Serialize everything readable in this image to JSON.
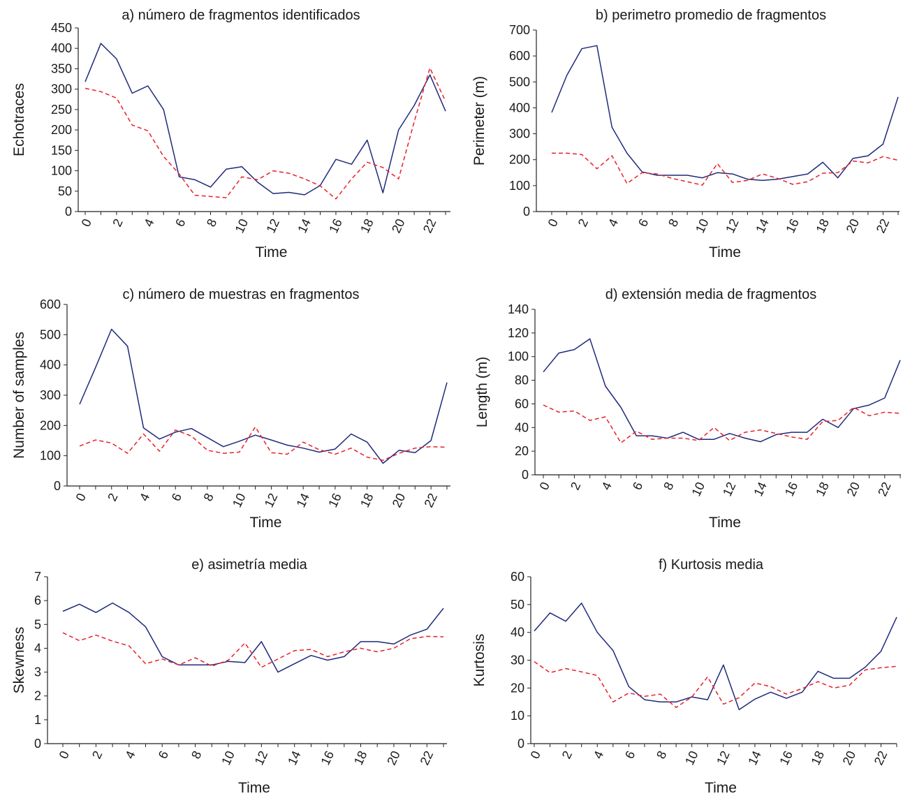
{
  "colors": {
    "solid": "#1f2a7a",
    "dashed": "#e8202a",
    "axis": "#222222"
  },
  "chart_data": [
    {
      "type": "line",
      "title": "a) número de fragmentos identificados",
      "xlabel": "Time",
      "ylabel": "Echotraces",
      "xlim": [
        0,
        23
      ],
      "ylim": [
        0,
        450
      ],
      "yticks": [
        0,
        50,
        100,
        150,
        200,
        250,
        300,
        350,
        400,
        450
      ],
      "xticks": [
        0,
        2,
        4,
        6,
        8,
        10,
        12,
        14,
        16,
        18,
        20,
        22
      ],
      "x": [
        0,
        1,
        2,
        3,
        4,
        5,
        6,
        7,
        8,
        9,
        10,
        11,
        12,
        13,
        14,
        15,
        16,
        17,
        18,
        19,
        20,
        21,
        22,
        23
      ],
      "series": [
        {
          "style": "solid",
          "values": [
            318,
            412,
            374,
            290,
            308,
            250,
            85,
            78,
            60,
            104,
            110,
            72,
            44,
            47,
            41,
            64,
            128,
            116,
            175,
            46,
            200,
            260,
            335,
            246
          ]
        },
        {
          "style": "dashed",
          "values": [
            302,
            294,
            278,
            212,
            198,
            135,
            92,
            40,
            37,
            34,
            85,
            78,
            100,
            94,
            80,
            63,
            31,
            80,
            121,
            108,
            80,
            220,
            352,
            270
          ]
        }
      ]
    },
    {
      "type": "line",
      "title": "b) perimetro promedio de fragmentos",
      "xlabel": "Time",
      "ylabel": "Perimeter (m)",
      "xlim": [
        0,
        23
      ],
      "ylim": [
        0,
        700
      ],
      "yticks": [
        0,
        100,
        200,
        300,
        400,
        500,
        600,
        700
      ],
      "xticks": [
        0,
        2,
        4,
        6,
        8,
        10,
        12,
        14,
        16,
        18,
        20,
        22
      ],
      "x": [
        0,
        1,
        2,
        3,
        4,
        5,
        6,
        7,
        8,
        9,
        10,
        11,
        12,
        13,
        14,
        15,
        16,
        17,
        18,
        19,
        20,
        21,
        22,
        23
      ],
      "series": [
        {
          "style": "solid",
          "values": [
            382,
            525,
            628,
            640,
            325,
            225,
            153,
            140,
            140,
            140,
            130,
            150,
            145,
            125,
            120,
            125,
            135,
            145,
            190,
            130,
            205,
            215,
            260,
            442
          ]
        },
        {
          "style": "dashed",
          "values": [
            225,
            225,
            220,
            165,
            215,
            108,
            150,
            145,
            128,
            115,
            102,
            185,
            112,
            120,
            145,
            128,
            105,
            115,
            148,
            150,
            195,
            188,
            212,
            198
          ]
        }
      ]
    },
    {
      "type": "line",
      "title": "c) número de muestras en fragmentos",
      "xlabel": "Time",
      "ylabel": "Number of samples",
      "xlim": [
        0,
        23
      ],
      "ylim": [
        0,
        600
      ],
      "yticks": [
        0,
        100,
        200,
        300,
        400,
        500,
        600
      ],
      "xticks": [
        0,
        2,
        4,
        6,
        8,
        10,
        12,
        14,
        16,
        18,
        20,
        22
      ],
      "x": [
        0,
        1,
        2,
        3,
        4,
        5,
        6,
        7,
        8,
        9,
        10,
        11,
        12,
        13,
        14,
        15,
        16,
        17,
        18,
        19,
        20,
        21,
        22,
        23
      ],
      "series": [
        {
          "style": "solid",
          "values": [
            270,
            392,
            518,
            462,
            192,
            155,
            178,
            190,
            160,
            130,
            148,
            168,
            152,
            135,
            125,
            112,
            122,
            172,
            145,
            75,
            118,
            110,
            150,
            342
          ]
        },
        {
          "style": "dashed",
          "values": [
            132,
            152,
            142,
            108,
            172,
            115,
            185,
            165,
            118,
            108,
            112,
            195,
            110,
            105,
            145,
            120,
            105,
            125,
            95,
            85,
            108,
            125,
            130,
            128
          ]
        }
      ]
    },
    {
      "type": "line",
      "title": "d) extensión media de fragmentos",
      "xlabel": "Time",
      "ylabel": "Length (m)",
      "xlim": [
        0,
        23
      ],
      "ylim": [
        0,
        140
      ],
      "yticks": [
        0,
        20,
        40,
        60,
        80,
        100,
        120,
        140
      ],
      "xticks": [
        0,
        2,
        4,
        6,
        8,
        10,
        12,
        14,
        16,
        18,
        20,
        22
      ],
      "x": [
        0,
        1,
        2,
        3,
        4,
        5,
        6,
        7,
        8,
        9,
        10,
        11,
        12,
        13,
        14,
        15,
        16,
        17,
        18,
        19,
        20,
        21,
        22,
        23
      ],
      "series": [
        {
          "style": "solid",
          "values": [
            87,
            103,
            106,
            115,
            75,
            57,
            33,
            33,
            31,
            36,
            30,
            30,
            35,
            31,
            28,
            34,
            36,
            36,
            47,
            40,
            56,
            59,
            65,
            97
          ]
        },
        {
          "style": "dashed",
          "values": [
            59,
            53,
            54,
            46,
            49,
            27,
            37,
            30,
            31,
            31,
            29,
            40,
            29,
            36,
            38,
            35,
            32,
            30,
            45,
            46,
            57,
            50,
            53,
            52
          ]
        }
      ]
    },
    {
      "type": "line",
      "title": "e) asimetría media",
      "xlabel": "Time",
      "ylabel": "Skewness",
      "xlim": [
        0,
        23
      ],
      "ylim": [
        0,
        7
      ],
      "yticks": [
        0,
        1,
        2,
        3,
        4,
        5,
        6,
        7
      ],
      "xticks": [
        0,
        2,
        4,
        6,
        8,
        10,
        12,
        14,
        16,
        18,
        20,
        22
      ],
      "x": [
        0,
        1,
        2,
        3,
        4,
        5,
        6,
        7,
        8,
        9,
        10,
        11,
        12,
        13,
        14,
        15,
        16,
        17,
        18,
        19,
        20,
        21,
        22,
        23
      ],
      "series": [
        {
          "style": "solid",
          "values": [
            5.55,
            5.85,
            5.5,
            5.9,
            5.5,
            4.9,
            3.65,
            3.3,
            3.3,
            3.3,
            3.45,
            3.4,
            4.28,
            3.0,
            3.35,
            3.7,
            3.5,
            3.65,
            4.28,
            4.28,
            4.18,
            4.55,
            4.8,
            5.68
          ]
        },
        {
          "style": "dashed",
          "values": [
            4.65,
            4.32,
            4.55,
            4.3,
            4.1,
            3.35,
            3.55,
            3.3,
            3.6,
            3.25,
            3.5,
            4.22,
            3.2,
            3.55,
            3.9,
            3.95,
            3.65,
            3.85,
            4.0,
            3.85,
            4.0,
            4.4,
            4.5,
            4.48
          ]
        }
      ]
    },
    {
      "type": "line",
      "title": "f) Kurtosis media",
      "xlabel": "Time",
      "ylabel": "Kurtosis",
      "xlim": [
        0,
        23
      ],
      "ylim": [
        0,
        60
      ],
      "yticks": [
        0,
        10,
        20,
        30,
        40,
        50,
        60
      ],
      "xticks": [
        0,
        2,
        4,
        6,
        8,
        10,
        12,
        14,
        16,
        18,
        20,
        22
      ],
      "x": [
        0,
        1,
        2,
        3,
        4,
        5,
        6,
        7,
        8,
        9,
        10,
        11,
        12,
        13,
        14,
        15,
        16,
        17,
        18,
        19,
        20,
        21,
        22,
        23
      ],
      "series": [
        {
          "style": "solid",
          "values": [
            40.5,
            47,
            44,
            50.5,
            40,
            33.5,
            20.5,
            15.8,
            15,
            15,
            16.8,
            15.8,
            28.3,
            12.2,
            16,
            18.5,
            16.3,
            18.5,
            26,
            23.5,
            23.5,
            27.5,
            33.2,
            45.5
          ]
        },
        {
          "style": "dashed",
          "values": [
            29.5,
            25.5,
            27,
            25.8,
            24.5,
            15,
            18.2,
            17,
            17.8,
            13,
            16.8,
            24,
            14.2,
            16.5,
            21.8,
            20.5,
            17.8,
            19.8,
            22.3,
            20,
            21,
            26.5,
            27.3,
            27.8
          ]
        }
      ]
    }
  ]
}
